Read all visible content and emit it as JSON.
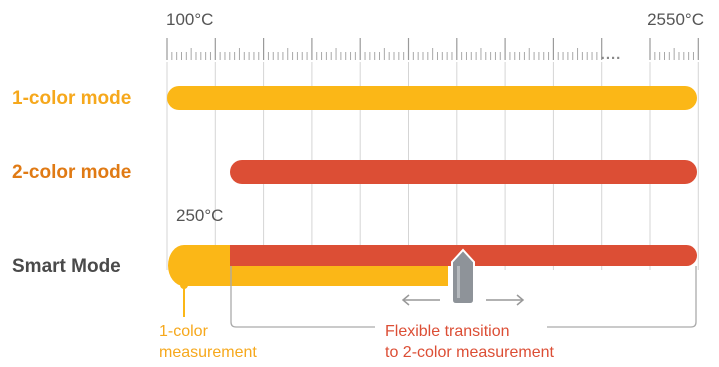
{
  "scale": {
    "start_label": "100°C",
    "end_label": "2550°C",
    "dots": "...."
  },
  "modes": [
    {
      "label": "1-color mode",
      "color": "#F6A81C"
    },
    {
      "label": "2-color mode",
      "color": "#E07A14"
    },
    {
      "label": "Smart Mode",
      "color": "#4A4A4A"
    }
  ],
  "marker": {
    "label": "250°C"
  },
  "annotations": {
    "one_color": [
      "1-color",
      "measurement"
    ],
    "transition": [
      "Flexible transition",
      "to 2-color measurement"
    ]
  },
  "colors": {
    "yellow": "#FBB717",
    "red": "#DC4E35",
    "orange_label": "#E07A14",
    "yellow_label": "#F6A81C",
    "grid": "#D5D5D5",
    "slider": "#8E9399"
  }
}
